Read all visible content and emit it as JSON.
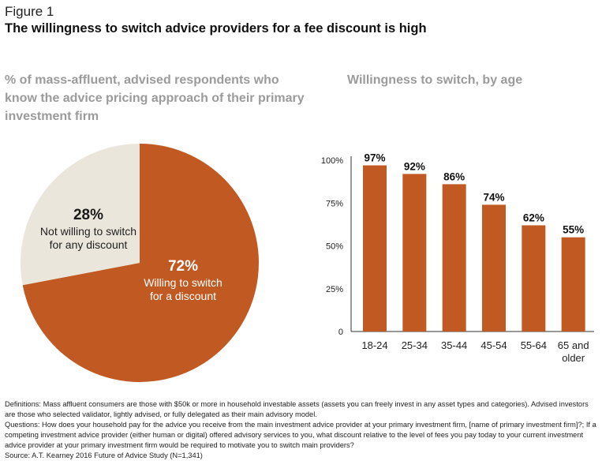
{
  "figure_label": "Figure 1",
  "title": "The willingness to switch advice providers for a fee discount is high",
  "chart_data": [
    {
      "type": "pie",
      "title": "% of mass-affluent, advised respondents who know the advice pricing approach of their primary investment firm",
      "slices": [
        {
          "label": "Willing to switch for a discount",
          "value": 72,
          "value_label": "72%",
          "text_lines": [
            "Willing to switch",
            "for a discount"
          ],
          "color": "#c15a22"
        },
        {
          "label": "Not willing to switch for any discount",
          "value": 28,
          "value_label": "28%",
          "text_lines": [
            "Not willing to switch",
            "for any discount"
          ],
          "color": "#ebe6dc"
        }
      ]
    },
    {
      "type": "bar",
      "title": "Willingness to switch, by age",
      "categories": [
        [
          "18-24"
        ],
        [
          "25-34"
        ],
        [
          "35-44"
        ],
        [
          "45-54"
        ],
        [
          "55-64"
        ],
        [
          "65 and",
          "older"
        ]
      ],
      "values": [
        97,
        92,
        86,
        74,
        62,
        55
      ],
      "value_labels": [
        "97%",
        "92%",
        "86%",
        "74%",
        "62%",
        "55%"
      ],
      "ylim": [
        0,
        100
      ],
      "yticks": [
        0,
        25,
        50,
        75,
        100
      ],
      "ytick_labels": [
        "0",
        "25%",
        "50%",
        "75%",
        "100%"
      ],
      "grid": false,
      "bar_color": "#c15a22",
      "xlabel": "",
      "ylabel": ""
    }
  ],
  "footnotes": {
    "definitions": "Definitions: Mass affluent consumers are those with $50k or more in household investable assets (assets you can freely invest in any asset types and categories). Advised investors are those who selected validator, lightly advised, or fully delegated as their main advisory model.",
    "questions": "Questions: How does your household pay for the advice you receive from the main investment advice provider at your primary investment firm, [name of primary investment firm]?; If a competing investment advice provider (either human or digital) offered advisory services to you, what discount relative to the level of fees you pay today to your current investment advice provider at your primary investment firm would be required to motivate you to switch main providers?",
    "source": "Source: A.T. Kearney 2016 Future of Advice Study (N=1,341)"
  }
}
